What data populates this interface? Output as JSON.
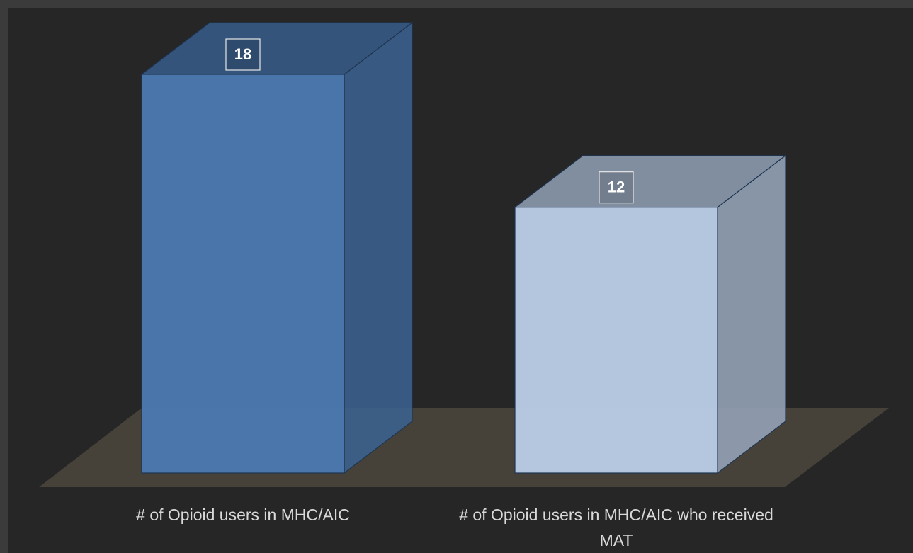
{
  "chart_data": {
    "type": "bar3d",
    "categories": [
      "# of Opioid users in MHC/AIC",
      "# of Opioid users in MHC/AIC who received MAT"
    ],
    "values": [
      18,
      12
    ],
    "colors": [
      "#4a78b0",
      "#b8cbe4"
    ]
  }
}
